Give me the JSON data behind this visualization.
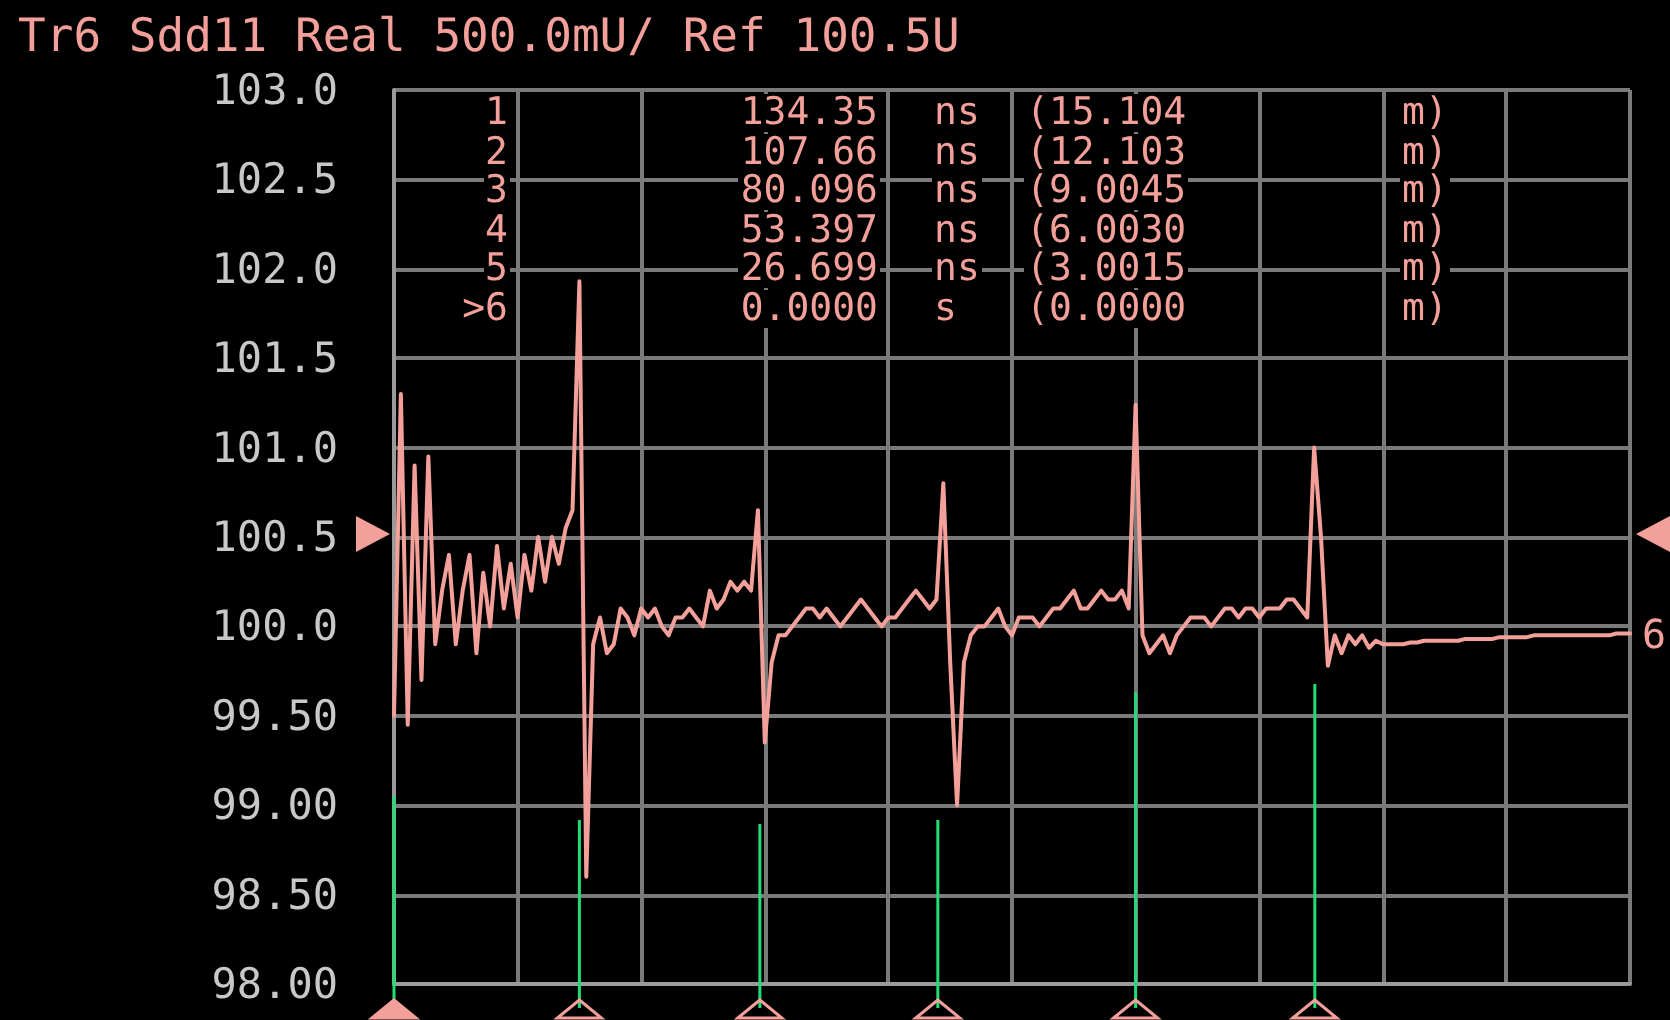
{
  "chart_data": {
    "type": "line",
    "title": "Tr6 Sdd11 Real 500.0mU/ Ref 100.5U",
    "annotations": [
      "1 134.35 ns (15.104 m)",
      "2 107.66 ns (12.103 m)",
      "3 80.096 ns (9.0045 m)",
      "4 53.397 ns (6.0030 m)",
      "5 26.699 ns (3.0015 m)",
      ">6 0.0000 s (0.0000 m)",
      "6"
    ],
    "categories": [
      null,
      null,
      null,
      null,
      null,
      null,
      null,
      null,
      null,
      null,
      null,
      null,
      null,
      null,
      null,
      null,
      null,
      null,
      null,
      null,
      null,
      null,
      null,
      null,
      null,
      null,
      null,
      null,
      null,
      null,
      null,
      null,
      null,
      null,
      null,
      null,
      null,
      null,
      null,
      null,
      null,
      null,
      null,
      null,
      null,
      null,
      null,
      null,
      null,
      null,
      null,
      null,
      null,
      null,
      null,
      null,
      null,
      null,
      null,
      null,
      null,
      null,
      null,
      null,
      null,
      null,
      null,
      null,
      null,
      null,
      null,
      null,
      null,
      null,
      null,
      null,
      null,
      null,
      null,
      null,
      null,
      null,
      null,
      null,
      null,
      null,
      null,
      null,
      null,
      null,
      null,
      null,
      null,
      null,
      null,
      null,
      null,
      null,
      null,
      null,
      null,
      null,
      null,
      null,
      null,
      null,
      null,
      null,
      null,
      null,
      null,
      null,
      null,
      null,
      null,
      null,
      null,
      null,
      null,
      null,
      null,
      null,
      null,
      null,
      null,
      null,
      null,
      null,
      null,
      null,
      null,
      null,
      null,
      null,
      null,
      null,
      null,
      null,
      null,
      null,
      null,
      null,
      null,
      null,
      null,
      null,
      null,
      null,
      null,
      null,
      null,
      null,
      null,
      null,
      null,
      null,
      null,
      null,
      null,
      null,
      null,
      null,
      null,
      null,
      null,
      null,
      null,
      null,
      null,
      null,
      null,
      null,
      null,
      null,
      null,
      null,
      null,
      null,
      null,
      null,
      null
    ],
    "series": [
      {
        "color": "#f4a09a",
        "values": [
          99.5,
          101.3,
          99.45,
          100.9,
          99.7,
          100.95,
          99.9,
          100.2,
          100.4,
          99.9,
          100.2,
          100.4,
          99.85,
          100.3,
          100.0,
          100.45,
          100.1,
          100.35,
          100.05,
          100.4,
          100.2,
          100.5,
          100.25,
          100.5,
          100.35,
          100.55,
          100.65,
          101.93,
          98.6,
          99.9,
          100.05,
          99.85,
          99.9,
          100.1,
          100.05,
          99.95,
          100.1,
          100.05,
          100.1,
          100.0,
          99.95,
          100.05,
          100.05,
          100.1,
          100.05,
          100.0,
          100.2,
          100.1,
          100.15,
          100.25,
          100.2,
          100.25,
          100.2,
          100.65,
          99.35,
          99.8,
          99.95,
          99.95,
          100.0,
          100.05,
          100.1,
          100.1,
          100.05,
          100.1,
          100.05,
          100.0,
          100.05,
          100.1,
          100.15,
          100.1,
          100.05,
          100.0,
          100.05,
          100.05,
          100.1,
          100.15,
          100.2,
          100.15,
          100.1,
          100.15,
          100.8,
          99.8,
          99.0,
          99.8,
          99.95,
          100.0,
          100.0,
          100.05,
          100.1,
          100.0,
          99.95,
          100.05,
          100.05,
          100.05,
          100.0,
          100.05,
          100.1,
          100.1,
          100.15,
          100.2,
          100.1,
          100.1,
          100.15,
          100.2,
          100.15,
          100.15,
          100.2,
          100.1,
          101.24,
          99.95,
          99.85,
          99.9,
          99.95,
          99.85,
          99.95,
          100.0,
          100.05,
          100.05,
          100.05,
          100.0,
          100.05,
          100.1,
          100.1,
          100.05,
          100.1,
          100.1,
          100.05,
          100.1,
          100.1,
          100.1,
          100.15,
          100.15,
          100.1,
          100.05,
          101.0,
          100.5,
          99.78,
          99.95,
          99.85,
          99.95,
          99.9,
          99.95,
          99.88,
          99.92,
          99.9,
          99.9,
          99.9,
          99.9,
          99.91,
          99.91,
          99.92,
          99.92,
          99.92,
          99.92,
          99.92,
          99.92,
          99.93,
          99.93,
          99.93,
          99.93,
          99.93,
          99.94,
          99.94,
          99.94,
          99.94,
          99.94,
          99.95,
          99.95,
          99.95,
          99.95,
          99.95,
          99.95,
          99.95,
          99.95,
          99.95,
          99.95,
          99.95,
          99.95,
          99.96,
          99.96,
          99.96
        ]
      }
    ],
    "ylim": [
      98,
      103
    ],
    "yticks": [
      {
        "value": 98,
        "label": "98.00"
      },
      {
        "value": 98.5,
        "label": "98.50"
      },
      {
        "value": 99,
        "label": "99.00"
      },
      {
        "value": 99.5,
        "label": "99.50"
      },
      {
        "value": 100,
        "label": "100.0"
      },
      {
        "value": 100.5,
        "label": "100.5"
      },
      {
        "value": 101,
        "label": "101.0"
      },
      {
        "value": 101.5,
        "label": "101.5"
      },
      {
        "value": 102,
        "label": "102.0"
      },
      {
        "value": 102.5,
        "label": "102.5"
      },
      {
        "value": 103,
        "label": "103.0"
      }
    ],
    "tick_labels": "y",
    "grid": true,
    "marker": "none",
    "line_style": "solid"
  }
}
